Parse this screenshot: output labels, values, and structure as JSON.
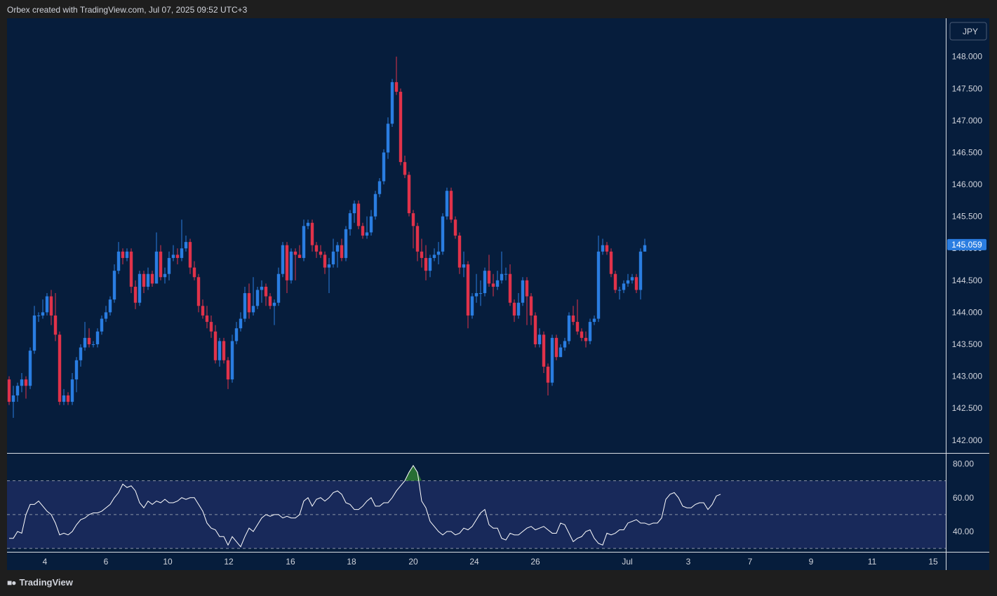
{
  "header": {
    "title": "Orbex created with TradingView.com, Jul 07, 2025 09:52 UTC+3"
  },
  "footer": {
    "brand": "TradingView",
    "brand_icon": "tradingview-logo-icon"
  },
  "colors": {
    "background": "#061d3c",
    "outer": "#1e1e1e",
    "up": "#2a7de1",
    "down": "#e0324a",
    "rsi_line": "#ffffff",
    "rsi_band": "#18295a",
    "rsi_overbought_fill": "#2e7d32",
    "price_badge": "#2a7de1"
  },
  "chart_data": [
    {
      "type": "candlestick",
      "symbol": "JPY",
      "last_price": "145.059",
      "ylim": [
        141.8,
        148.6
      ],
      "y_ticks": [
        "148.000",
        "147.500",
        "147.000",
        "146.500",
        "146.000",
        "145.500",
        "145.000",
        "144.500",
        "144.000",
        "143.500",
        "143.000",
        "142.500",
        "142.000"
      ],
      "x_ticks": [
        "4",
        "6",
        "10",
        "12",
        "16",
        "18",
        "20",
        "24",
        "26",
        "Jul",
        "3",
        "7",
        "9",
        "11",
        "15"
      ],
      "candles": [
        [
          142.95,
          142.6,
          143.0,
          142.55
        ],
        [
          142.6,
          142.7,
          142.85,
          142.35
        ],
        [
          142.7,
          142.85,
          142.9,
          142.6
        ],
        [
          142.85,
          142.95,
          143.05,
          142.75
        ],
        [
          142.95,
          142.85,
          143.0,
          142.65
        ],
        [
          142.85,
          143.4,
          143.45,
          142.8
        ],
        [
          143.4,
          143.95,
          144.1,
          143.35
        ],
        [
          143.95,
          143.95,
          144.0,
          143.85
        ],
        [
          143.95,
          144.0,
          144.2,
          143.9
        ],
        [
          144.0,
          144.25,
          144.3,
          143.95
        ],
        [
          144.25,
          143.95,
          144.35,
          143.8
        ],
        [
          143.95,
          143.65,
          144.3,
          143.55
        ],
        [
          143.65,
          142.6,
          143.7,
          142.55
        ],
        [
          142.6,
          142.7,
          142.8,
          142.55
        ],
        [
          142.7,
          142.6,
          142.75,
          142.55
        ],
        [
          142.6,
          142.95,
          143.05,
          142.55
        ],
        [
          142.95,
          143.25,
          143.3,
          142.75
        ],
        [
          143.25,
          143.45,
          143.5,
          143.15
        ],
        [
          143.45,
          143.6,
          143.85,
          143.4
        ],
        [
          143.6,
          143.5,
          143.75,
          143.45
        ],
        [
          143.5,
          143.5,
          143.55,
          143.45
        ],
        [
          143.5,
          143.7,
          143.75,
          143.45
        ],
        [
          143.7,
          143.9,
          143.95,
          143.65
        ],
        [
          143.9,
          144.0,
          144.1,
          143.85
        ],
        [
          144.0,
          144.2,
          144.25,
          143.95
        ],
        [
          144.2,
          144.65,
          144.75,
          144.15
        ],
        [
          144.65,
          144.95,
          145.1,
          144.6
        ],
        [
          144.95,
          144.85,
          145.0,
          144.75
        ],
        [
          144.85,
          144.95,
          145.0,
          144.8
        ],
        [
          144.95,
          144.4,
          145.0,
          144.3
        ],
        [
          144.4,
          144.15,
          144.5,
          144.05
        ],
        [
          144.15,
          144.6,
          144.65,
          144.1
        ],
        [
          144.6,
          144.4,
          144.65,
          144.3
        ],
        [
          144.4,
          144.6,
          144.7,
          144.35
        ],
        [
          144.6,
          144.45,
          144.65,
          144.4
        ],
        [
          144.45,
          144.95,
          145.25,
          144.45
        ],
        [
          144.95,
          144.55,
          145.05,
          144.5
        ],
        [
          144.55,
          144.6,
          144.7,
          144.45
        ],
        [
          144.6,
          144.85,
          144.95,
          144.5
        ],
        [
          144.85,
          144.9,
          145.05,
          144.8
        ],
        [
          144.9,
          144.85,
          145.0,
          144.75
        ],
        [
          144.85,
          145.0,
          145.45,
          144.8
        ],
        [
          145.0,
          145.1,
          145.2,
          144.95
        ],
        [
          145.1,
          144.7,
          145.15,
          144.6
        ],
        [
          144.7,
          144.55,
          144.8,
          144.5
        ],
        [
          144.55,
          144.1,
          144.6,
          144.0
        ],
        [
          144.1,
          143.95,
          144.2,
          143.9
        ],
        [
          143.95,
          143.85,
          144.1,
          143.75
        ],
        [
          143.85,
          143.7,
          143.95,
          143.6
        ],
        [
          143.7,
          143.25,
          143.8,
          143.2
        ],
        [
          143.25,
          143.55,
          143.6,
          143.15
        ],
        [
          143.55,
          143.25,
          143.6,
          143.2
        ],
        [
          143.25,
          142.95,
          143.3,
          142.8
        ],
        [
          142.95,
          143.55,
          143.65,
          142.9
        ],
        [
          143.55,
          143.75,
          143.85,
          143.5
        ],
        [
          143.75,
          143.9,
          144.0,
          143.7
        ],
        [
          143.9,
          144.3,
          144.4,
          143.85
        ],
        [
          144.3,
          144.0,
          144.45,
          143.9
        ],
        [
          144.0,
          144.1,
          144.55,
          143.95
        ],
        [
          144.1,
          144.35,
          144.4,
          144.05
        ],
        [
          144.35,
          144.4,
          144.5,
          144.15
        ],
        [
          144.4,
          144.25,
          144.45,
          144.1
        ],
        [
          144.25,
          144.1,
          144.3,
          144.05
        ],
        [
          144.1,
          144.15,
          144.2,
          143.8
        ],
        [
          144.15,
          144.6,
          144.7,
          144.1
        ],
        [
          144.6,
          145.05,
          145.1,
          144.55
        ],
        [
          145.05,
          144.5,
          145.1,
          144.3
        ],
        [
          144.5,
          144.95,
          145.0,
          144.45
        ],
        [
          144.95,
          144.9,
          145.0,
          144.5
        ],
        [
          144.9,
          144.85,
          145.05,
          144.85
        ],
        [
          144.85,
          145.35,
          145.45,
          144.8
        ],
        [
          145.35,
          145.4,
          145.45,
          145.3
        ],
        [
          145.4,
          145.05,
          145.45,
          144.95
        ],
        [
          145.05,
          144.95,
          145.1,
          144.85
        ],
        [
          144.95,
          144.9,
          145.05,
          144.85
        ],
        [
          144.9,
          144.7,
          144.95,
          144.6
        ],
        [
          144.7,
          144.75,
          144.85,
          144.3
        ],
        [
          144.75,
          144.95,
          145.15,
          144.7
        ],
        [
          144.95,
          145.05,
          145.1,
          144.7
        ],
        [
          145.05,
          144.85,
          145.15,
          144.8
        ],
        [
          144.85,
          145.3,
          145.35,
          144.8
        ],
        [
          145.3,
          145.55,
          145.6,
          145.2
        ],
        [
          145.55,
          145.7,
          145.75,
          145.4
        ],
        [
          145.7,
          145.35,
          145.75,
          145.3
        ],
        [
          145.35,
          145.2,
          145.4,
          145.15
        ],
        [
          145.2,
          145.25,
          145.5,
          145.15
        ],
        [
          145.25,
          145.5,
          145.6,
          145.2
        ],
        [
          145.5,
          145.85,
          145.9,
          145.45
        ],
        [
          145.85,
          146.05,
          146.1,
          145.8
        ],
        [
          146.05,
          146.5,
          146.55,
          146.0
        ],
        [
          146.5,
          146.95,
          147.05,
          146.4
        ],
        [
          146.95,
          147.6,
          147.65,
          146.9
        ],
        [
          147.6,
          147.45,
          148.0,
          147.4
        ],
        [
          147.45,
          146.35,
          147.5,
          146.3
        ],
        [
          146.35,
          146.15,
          146.45,
          146.1
        ],
        [
          146.15,
          145.55,
          146.2,
          145.5
        ],
        [
          145.55,
          145.35,
          145.6,
          145.0
        ],
        [
          145.35,
          144.95,
          145.4,
          144.8
        ],
        [
          144.95,
          144.85,
          145.15,
          144.7
        ],
        [
          144.85,
          144.65,
          145.05,
          144.5
        ],
        [
          144.65,
          144.85,
          144.9,
          144.55
        ],
        [
          144.85,
          144.9,
          145.0,
          144.8
        ],
        [
          144.9,
          144.95,
          145.1,
          144.75
        ],
        [
          144.95,
          145.5,
          145.55,
          144.9
        ],
        [
          145.5,
          145.9,
          145.95,
          145.45
        ],
        [
          145.9,
          145.45,
          145.95,
          145.4
        ],
        [
          145.45,
          145.2,
          145.5,
          145.15
        ],
        [
          145.2,
          144.7,
          145.25,
          144.6
        ],
        [
          144.7,
          144.75,
          144.95,
          144.55
        ],
        [
          144.75,
          143.95,
          144.8,
          143.75
        ],
        [
          143.95,
          144.25,
          144.3,
          143.9
        ],
        [
          144.25,
          144.3,
          144.6,
          144.15
        ],
        [
          144.3,
          144.3,
          144.5,
          144.1
        ],
        [
          144.3,
          144.65,
          144.7,
          144.25
        ],
        [
          144.65,
          144.45,
          144.9,
          144.4
        ],
        [
          144.45,
          144.4,
          144.6,
          144.25
        ],
        [
          144.4,
          144.5,
          144.65,
          144.35
        ],
        [
          144.5,
          144.6,
          144.95,
          144.45
        ],
        [
          144.6,
          144.6,
          144.7,
          144.5
        ],
        [
          144.6,
          144.15,
          144.75,
          144.1
        ],
        [
          144.15,
          143.95,
          144.2,
          143.85
        ],
        [
          143.95,
          144.15,
          144.3,
          143.9
        ],
        [
          144.15,
          144.5,
          144.55,
          144.1
        ],
        [
          144.5,
          144.25,
          144.55,
          143.8
        ],
        [
          144.25,
          143.95,
          144.3,
          143.8
        ],
        [
          143.95,
          143.5,
          144.0,
          143.45
        ],
        [
          143.5,
          143.65,
          143.75,
          143.45
        ],
        [
          143.65,
          143.15,
          143.7,
          143.05
        ],
        [
          143.15,
          142.9,
          143.2,
          142.7
        ],
        [
          142.9,
          143.6,
          143.65,
          142.85
        ],
        [
          143.6,
          143.3,
          143.65,
          143.25
        ],
        [
          143.3,
          143.45,
          143.5,
          143.3
        ],
        [
          143.45,
          143.55,
          143.6,
          143.4
        ],
        [
          143.55,
          143.95,
          144.0,
          143.5
        ],
        [
          143.95,
          143.85,
          144.1,
          143.8
        ],
        [
          143.85,
          143.7,
          144.2,
          143.65
        ],
        [
          143.7,
          143.6,
          143.75,
          143.55
        ],
        [
          143.6,
          143.55,
          143.7,
          143.45
        ],
        [
          143.55,
          143.85,
          143.9,
          143.5
        ],
        [
          143.85,
          143.9,
          143.95,
          143.8
        ],
        [
          143.9,
          144.95,
          145.2,
          143.85
        ],
        [
          144.95,
          145.05,
          145.15,
          144.9
        ],
        [
          145.05,
          144.95,
          145.1,
          144.9
        ],
        [
          144.95,
          144.6,
          145.0,
          144.55
        ],
        [
          144.6,
          144.35,
          144.65,
          144.3
        ],
        [
          144.35,
          144.35,
          144.4,
          144.2
        ],
        [
          144.35,
          144.45,
          144.5,
          144.3
        ],
        [
          144.45,
          144.5,
          144.6,
          144.4
        ],
        [
          144.5,
          144.55,
          144.6,
          144.45
        ],
        [
          144.55,
          144.35,
          144.6,
          144.3
        ],
        [
          144.35,
          144.95,
          145.0,
          144.2
        ],
        [
          144.95,
          145.05,
          145.15,
          144.95
        ]
      ]
    },
    {
      "type": "line",
      "indicator": "RSI",
      "ylim": [
        28,
        86
      ],
      "y_ticks": [
        "80.00",
        "60.00",
        "40.00"
      ],
      "bands": [
        70,
        50,
        30
      ],
      "values": [
        36,
        36,
        40,
        39,
        50,
        56,
        56,
        58,
        55,
        52,
        50,
        45,
        38,
        39,
        38,
        40,
        44,
        47,
        48,
        50,
        51,
        51,
        52,
        54,
        56,
        60,
        63,
        68,
        66,
        67,
        64,
        57,
        54,
        58,
        56,
        58,
        57,
        59,
        57,
        57,
        58,
        60,
        59,
        60,
        60,
        56,
        52,
        45,
        42,
        41,
        37,
        37,
        32,
        37,
        34,
        31,
        37,
        42,
        40,
        44,
        48,
        50,
        49,
        50,
        50,
        48,
        49,
        48,
        48,
        50,
        58,
        60,
        55,
        59,
        60,
        58,
        60,
        63,
        64,
        62,
        57,
        56,
        53,
        53,
        55,
        58,
        60,
        55,
        55,
        57,
        57,
        60,
        64,
        67,
        70,
        75,
        79,
        75,
        58,
        54,
        46,
        43,
        40,
        38,
        40,
        40,
        38,
        39,
        42,
        41,
        43,
        47,
        51,
        53,
        44,
        42,
        42,
        36,
        35,
        39,
        38,
        38,
        40,
        42,
        43,
        41,
        42,
        43,
        41,
        39,
        39,
        45,
        44,
        39,
        34,
        36,
        37,
        40,
        41,
        36,
        33,
        32,
        39,
        38,
        39,
        41,
        41,
        45,
        46,
        47,
        45,
        45,
        44,
        45,
        45,
        48,
        59,
        62,
        63,
        60,
        55,
        54,
        54,
        56,
        57,
        57,
        53,
        56,
        61,
        62
      ]
    }
  ]
}
